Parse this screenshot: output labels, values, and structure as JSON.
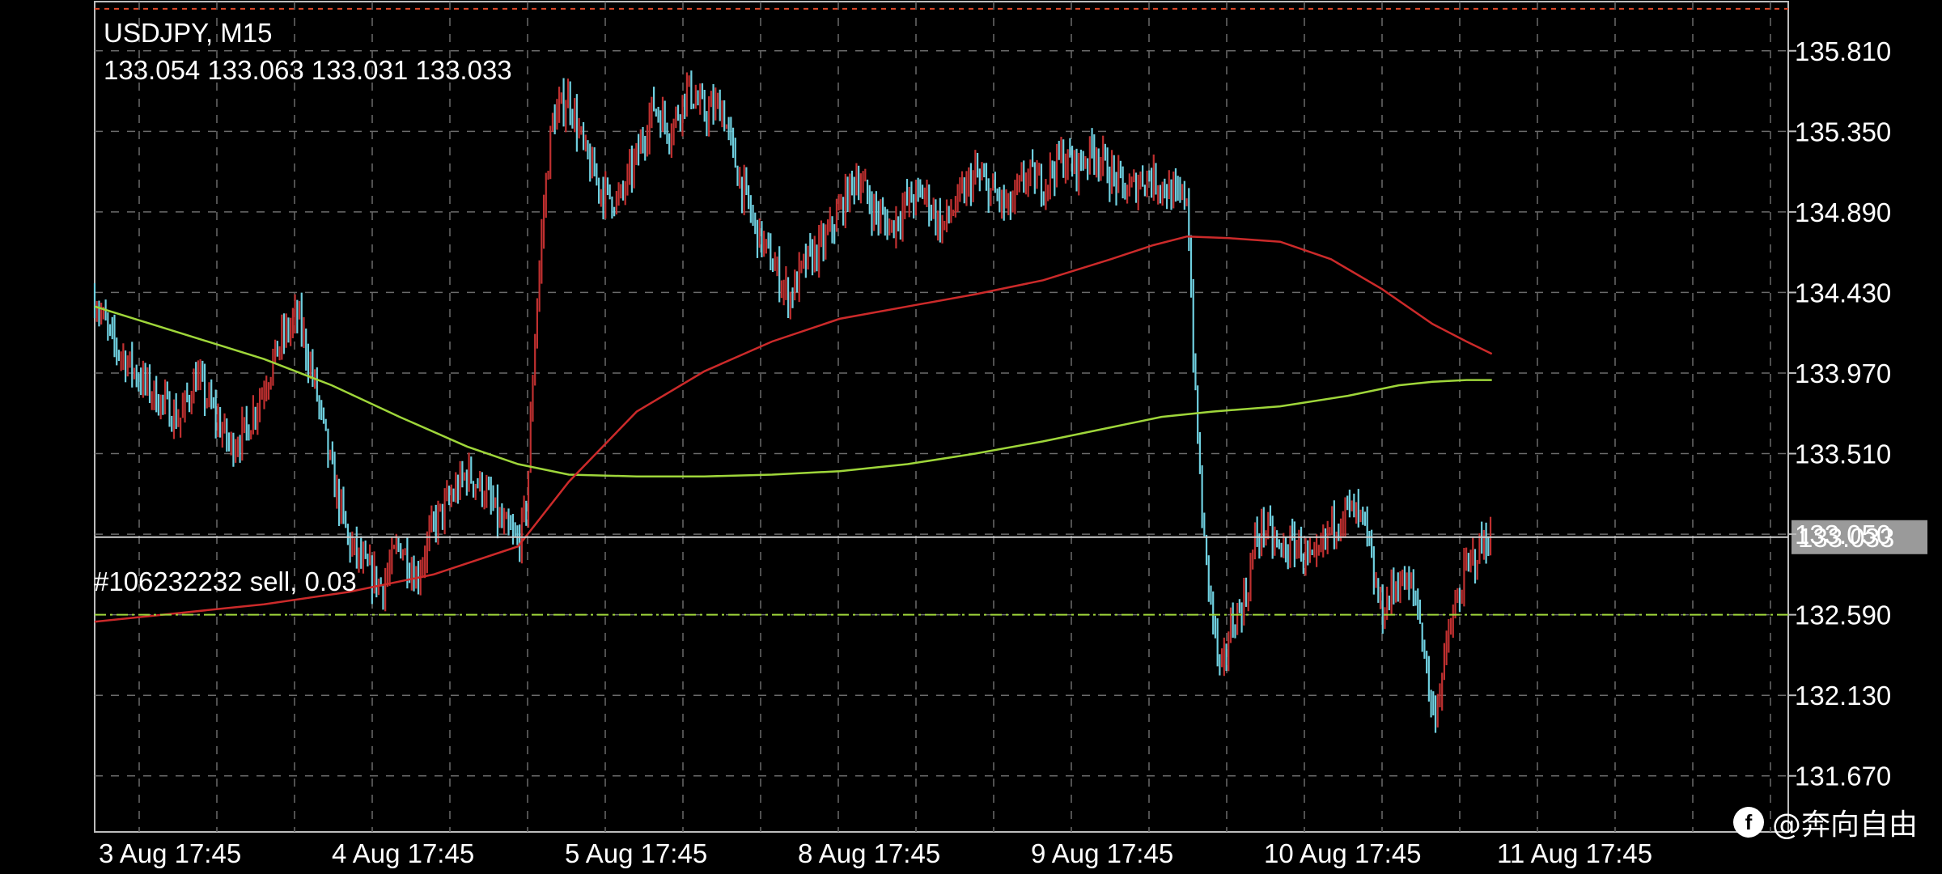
{
  "header": {
    "symbol": "USDJPY, M15",
    "ohlc": "133.054 133.063 133.031 133.033"
  },
  "order": {
    "label": "#106232232 sell, 0.03",
    "price": 132.59
  },
  "watermark": {
    "text": "@奔向自由",
    "icon": "f"
  },
  "colors": {
    "background": "#000000",
    "grid": "#6b6b6b",
    "bull_candle": "#c03030",
    "bear_candle": "#6fd0e0",
    "ma_fast": "#cc2a2a",
    "ma_slow": "#9fd63a",
    "order_line": "#9fd63a",
    "top_line": "#e04a2a",
    "current_price_box": "#9a9a9a"
  },
  "chart_data": {
    "type": "candlestick",
    "ylim": [
      131.35,
      136.1
    ],
    "y_ticks": [
      "135.810",
      "135.350",
      "134.890",
      "134.430",
      "133.970",
      "133.510",
      "133.050",
      "132.590",
      "132.130",
      "131.670"
    ],
    "x_ticks": [
      "3 Aug 17:45",
      "4 Aug 17:45",
      "5 Aug 17:45",
      "8 Aug 17:45",
      "9 Aug 17:45",
      "10 Aug 17:45",
      "11 Aug 17:45"
    ],
    "current_price": "133.033",
    "top_line_price": 136.05,
    "close_path": [
      [
        0.0,
        134.4
      ],
      [
        0.01,
        134.15
      ],
      [
        0.03,
        133.9
      ],
      [
        0.05,
        133.7
      ],
      [
        0.06,
        133.95
      ],
      [
        0.08,
        133.55
      ],
      [
        0.09,
        133.65
      ],
      [
        0.1,
        133.9
      ],
      [
        0.11,
        134.15
      ],
      [
        0.12,
        134.3
      ],
      [
        0.13,
        133.9
      ],
      [
        0.14,
        133.4
      ],
      [
        0.15,
        133.0
      ],
      [
        0.16,
        132.85
      ],
      [
        0.17,
        132.75
      ],
      [
        0.18,
        133.0
      ],
      [
        0.19,
        132.8
      ],
      [
        0.2,
        133.1
      ],
      [
        0.21,
        133.25
      ],
      [
        0.22,
        133.4
      ],
      [
        0.23,
        133.3
      ],
      [
        0.24,
        133.1
      ],
      [
        0.25,
        133.0
      ],
      [
        0.255,
        133.2
      ],
      [
        0.26,
        134.2
      ],
      [
        0.265,
        134.9
      ],
      [
        0.27,
        135.4
      ],
      [
        0.28,
        135.55
      ],
      [
        0.29,
        135.2
      ],
      [
        0.3,
        135.0
      ],
      [
        0.31,
        134.95
      ],
      [
        0.32,
        135.2
      ],
      [
        0.33,
        135.5
      ],
      [
        0.34,
        135.35
      ],
      [
        0.35,
        135.6
      ],
      [
        0.36,
        135.45
      ],
      [
        0.37,
        135.5
      ],
      [
        0.38,
        135.1
      ],
      [
        0.39,
        134.8
      ],
      [
        0.4,
        134.6
      ],
      [
        0.41,
        134.4
      ],
      [
        0.42,
        134.6
      ],
      [
        0.43,
        134.7
      ],
      [
        0.44,
        134.9
      ],
      [
        0.45,
        135.1
      ],
      [
        0.46,
        134.9
      ],
      [
        0.47,
        134.8
      ],
      [
        0.48,
        134.95
      ],
      [
        0.49,
        135.0
      ],
      [
        0.5,
        134.8
      ],
      [
        0.51,
        134.95
      ],
      [
        0.52,
        135.1
      ],
      [
        0.53,
        135.0
      ],
      [
        0.54,
        134.9
      ],
      [
        0.55,
        135.1
      ],
      [
        0.56,
        135.05
      ],
      [
        0.57,
        135.2
      ],
      [
        0.58,
        135.15
      ],
      [
        0.59,
        135.25
      ],
      [
        0.6,
        135.1
      ],
      [
        0.61,
        135.0
      ],
      [
        0.62,
        135.1
      ],
      [
        0.63,
        135.05
      ],
      [
        0.64,
        134.95
      ],
      [
        0.645,
        135.0
      ],
      [
        0.65,
        133.8
      ],
      [
        0.655,
        133.0
      ],
      [
        0.66,
        132.6
      ],
      [
        0.665,
        132.2
      ],
      [
        0.67,
        132.5
      ],
      [
        0.68,
        132.7
      ],
      [
        0.685,
        133.0
      ],
      [
        0.69,
        133.1
      ],
      [
        0.7,
        132.95
      ],
      [
        0.71,
        133.0
      ],
      [
        0.72,
        132.85
      ],
      [
        0.73,
        133.1
      ],
      [
        0.74,
        133.2
      ],
      [
        0.75,
        133.1
      ],
      [
        0.755,
        132.8
      ],
      [
        0.76,
        132.6
      ],
      [
        0.77,
        132.8
      ],
      [
        0.78,
        132.7
      ],
      [
        0.785,
        132.4
      ],
      [
        0.79,
        132.0
      ],
      [
        0.795,
        132.2
      ],
      [
        0.8,
        132.5
      ],
      [
        0.81,
        132.85
      ],
      [
        0.82,
        133.0
      ],
      [
        0.825,
        133.05
      ]
    ],
    "ma_fast_path": [
      [
        0.0,
        132.55
      ],
      [
        0.05,
        132.6
      ],
      [
        0.1,
        132.65
      ],
      [
        0.15,
        132.72
      ],
      [
        0.2,
        132.82
      ],
      [
        0.25,
        132.98
      ],
      [
        0.28,
        133.35
      ],
      [
        0.32,
        133.75
      ],
      [
        0.36,
        133.98
      ],
      [
        0.4,
        134.15
      ],
      [
        0.44,
        134.28
      ],
      [
        0.48,
        134.35
      ],
      [
        0.52,
        134.42
      ],
      [
        0.56,
        134.5
      ],
      [
        0.6,
        134.62
      ],
      [
        0.625,
        134.7
      ],
      [
        0.645,
        134.75
      ],
      [
        0.67,
        134.74
      ],
      [
        0.7,
        134.72
      ],
      [
        0.73,
        134.62
      ],
      [
        0.76,
        134.45
      ],
      [
        0.79,
        134.25
      ],
      [
        0.81,
        134.15
      ],
      [
        0.825,
        134.08
      ]
    ],
    "ma_slow_path": [
      [
        0.0,
        134.35
      ],
      [
        0.05,
        134.2
      ],
      [
        0.1,
        134.05
      ],
      [
        0.14,
        133.9
      ],
      [
        0.18,
        133.72
      ],
      [
        0.22,
        133.55
      ],
      [
        0.25,
        133.45
      ],
      [
        0.28,
        133.39
      ],
      [
        0.32,
        133.38
      ],
      [
        0.36,
        133.38
      ],
      [
        0.4,
        133.39
      ],
      [
        0.44,
        133.41
      ],
      [
        0.48,
        133.45
      ],
      [
        0.52,
        133.51
      ],
      [
        0.56,
        133.58
      ],
      [
        0.6,
        133.66
      ],
      [
        0.63,
        133.72
      ],
      [
        0.66,
        133.75
      ],
      [
        0.7,
        133.78
      ],
      [
        0.74,
        133.84
      ],
      [
        0.77,
        133.9
      ],
      [
        0.79,
        133.92
      ],
      [
        0.81,
        133.93
      ],
      [
        0.825,
        133.93
      ]
    ]
  }
}
